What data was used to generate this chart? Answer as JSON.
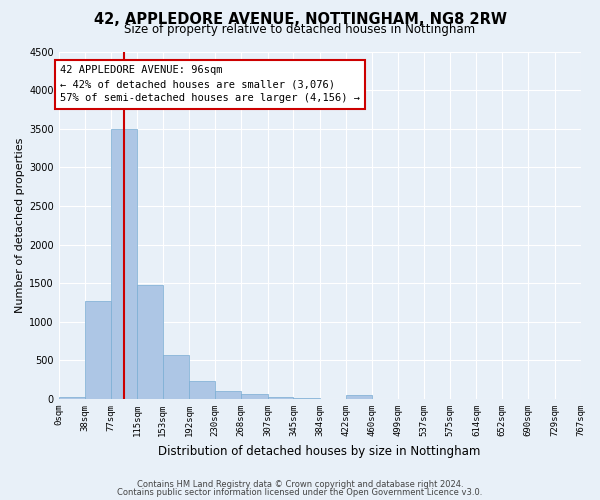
{
  "title1": "42, APPLEDORE AVENUE, NOTTINGHAM, NG8 2RW",
  "title2": "Size of property relative to detached houses in Nottingham",
  "xlabel": "Distribution of detached houses by size in Nottingham",
  "ylabel": "Number of detached properties",
  "bin_edges": [
    0,
    38,
    77,
    115,
    153,
    192,
    230,
    268,
    307,
    345,
    384,
    422,
    460,
    499,
    537,
    575,
    614,
    652,
    690,
    729,
    767
  ],
  "bar_heights": [
    30,
    1270,
    3500,
    1480,
    570,
    240,
    110,
    70,
    30,
    10,
    5,
    50,
    5,
    3,
    3,
    2,
    2,
    2,
    2,
    2
  ],
  "bar_color": "#adc6e5",
  "bar_edge_color": "#7aadd4",
  "annotation_title": "42 APPLEDORE AVENUE: 96sqm",
  "annotation_line1": "← 42% of detached houses are smaller (3,076)",
  "annotation_line2": "57% of semi-detached houses are larger (4,156) →",
  "annotation_box_color": "#ffffff",
  "annotation_box_edgecolor": "#cc0000",
  "vline_color": "#cc0000",
  "vline_x": 96,
  "ylim": [
    0,
    4500
  ],
  "yticks": [
    0,
    500,
    1000,
    1500,
    2000,
    2500,
    3000,
    3500,
    4000,
    4500
  ],
  "footer_line1": "Contains HM Land Registry data © Crown copyright and database right 2024.",
  "footer_line2": "Contains public sector information licensed under the Open Government Licence v3.0.",
  "bg_color": "#e8f0f8",
  "grid_color": "#ffffff",
  "title1_fontsize": 10.5,
  "title2_fontsize": 8.5,
  "ylabel_fontsize": 8,
  "xlabel_fontsize": 8.5,
  "tick_fontsize": 6.5,
  "annotation_fontsize": 7.5,
  "footer_fontsize": 6.0
}
